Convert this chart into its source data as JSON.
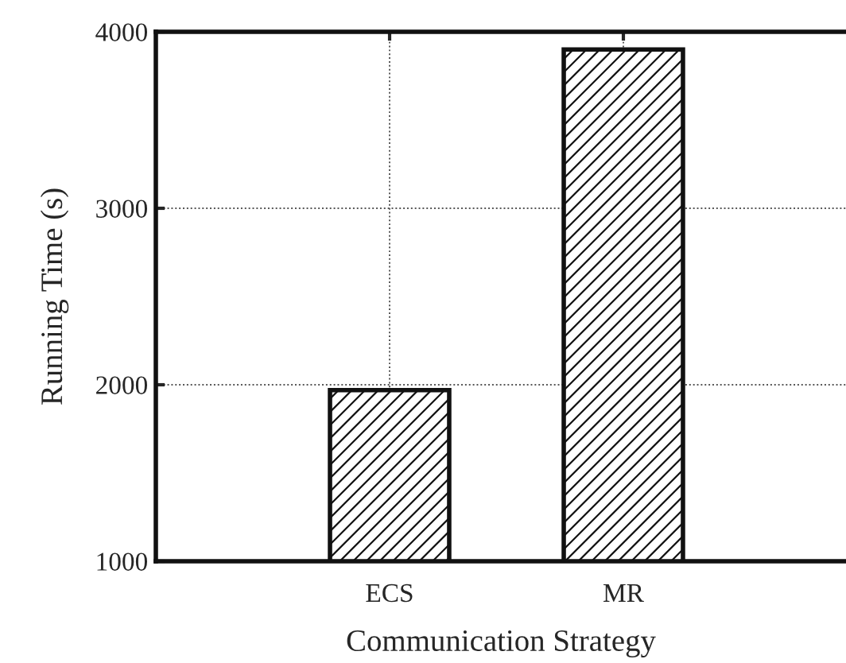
{
  "chart_data": {
    "type": "bar",
    "xlabel": "Communication Strategy",
    "ylabel": "Running Time (s)",
    "categories": [
      "ECS",
      "MR"
    ],
    "values": [
      1970,
      3900
    ],
    "color": "#111111",
    "ylim": [
      1000,
      4000
    ],
    "yticks": [
      1000,
      2000,
      3000,
      4000
    ],
    "grid": true
  }
}
